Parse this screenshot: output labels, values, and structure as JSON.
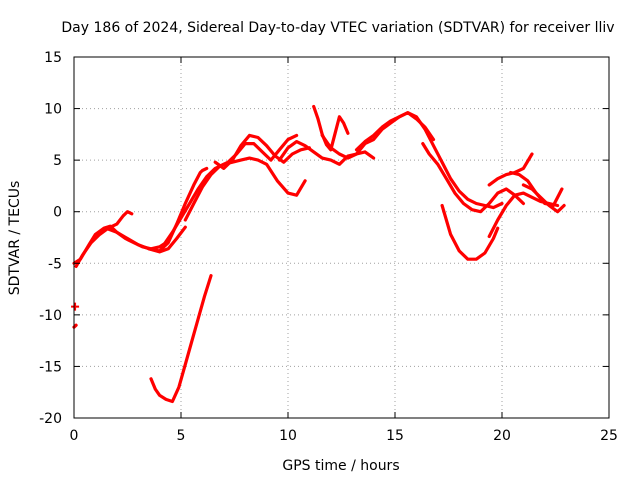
{
  "chart_data": {
    "type": "line",
    "title": "Day 186 of 2024, Sidereal Day-to-day VTEC variation (SDTVAR) for receiver lliv",
    "xlabel": "GPS time / hours",
    "ylabel": "SDTVAR / TECUs",
    "xlim": [
      0,
      25
    ],
    "ylim": [
      -20,
      15
    ],
    "xticks": [
      0,
      5,
      10,
      15,
      20,
      25
    ],
    "yticks": [
      -20,
      -15,
      -10,
      -5,
      0,
      5,
      10,
      15
    ],
    "grid": true,
    "color": "#ff0000",
    "series": [
      {
        "name": "arc-1",
        "x": [
          0.0,
          0.3,
          0.7,
          1.0,
          1.4,
          1.7,
          2.0,
          2.4,
          2.8,
          3.2,
          3.6,
          4.0,
          4.3
        ],
        "y": [
          -5.0,
          -4.6,
          -3.2,
          -2.2,
          -1.6,
          -1.4,
          -2.0,
          -2.6,
          -3.0,
          -3.4,
          -3.6,
          -3.4,
          -3.0
        ]
      },
      {
        "name": "arc-2",
        "x": [
          0.1,
          0.4,
          0.8,
          1.2,
          1.6,
          2.0,
          2.3,
          2.5,
          2.7
        ],
        "y": [
          -5.3,
          -4.2,
          -3.0,
          -2.2,
          -1.6,
          -1.2,
          -0.4,
          0.0,
          -0.2
        ]
      },
      {
        "name": "arc-3",
        "x": [
          1.5,
          2.0,
          2.5,
          3.0,
          3.5,
          4.0,
          4.4,
          4.8,
          5.2
        ],
        "y": [
          -1.6,
          -2.0,
          -2.6,
          -3.2,
          -3.6,
          -3.9,
          -3.6,
          -2.6,
          -1.5
        ]
      },
      {
        "name": "arc-4",
        "x": [
          3.5,
          4.0,
          4.4,
          4.8,
          5.2,
          5.6,
          5.9,
          6.0,
          6.2
        ],
        "y": [
          -3.6,
          -3.8,
          -3.0,
          -1.2,
          0.8,
          2.6,
          3.8,
          4.0,
          4.2
        ]
      },
      {
        "name": "arc-5",
        "x": [
          4.2,
          4.6,
          5.0,
          5.4,
          5.8,
          6.2,
          6.6,
          7.0,
          7.4,
          7.8,
          8.2,
          8.6,
          9.0,
          9.5,
          10.0,
          10.4,
          10.8
        ],
        "y": [
          -3.2,
          -2.0,
          -0.6,
          0.8,
          2.2,
          3.4,
          4.2,
          4.6,
          4.8,
          5.0,
          5.2,
          5.0,
          4.6,
          3.0,
          1.8,
          1.6,
          3.0
        ]
      },
      {
        "name": "arc-6",
        "x": [
          5.2,
          5.6,
          6.0,
          6.4,
          6.8,
          7.2,
          7.6,
          8.0,
          8.4,
          8.8,
          9.2,
          9.6,
          10.0,
          10.4
        ],
        "y": [
          -0.8,
          0.8,
          2.4,
          3.6,
          4.4,
          4.8,
          5.6,
          6.6,
          6.6,
          5.8,
          5.0,
          6.0,
          7.0,
          7.4
        ]
      },
      {
        "name": "arc-7",
        "x": [
          6.6,
          7.0,
          7.4,
          7.8,
          8.2,
          8.6,
          9.0,
          9.4,
          9.8,
          10.2,
          10.6,
          11.0
        ],
        "y": [
          4.8,
          4.2,
          5.0,
          6.4,
          7.4,
          7.2,
          6.4,
          5.4,
          4.8,
          5.6,
          6.0,
          6.2
        ]
      },
      {
        "name": "arc-8",
        "x": [
          9.6,
          10.0,
          10.4,
          10.8,
          11.2,
          11.6,
          12.0,
          12.4,
          12.8,
          13.2,
          13.6,
          14.0
        ],
        "y": [
          5.0,
          6.2,
          6.8,
          6.4,
          5.8,
          5.2,
          5.0,
          4.6,
          5.4,
          5.6,
          5.8,
          5.2
        ]
      },
      {
        "name": "arc-9",
        "x": [
          11.2,
          11.4,
          11.6,
          11.8,
          12.0,
          12.2,
          12.4,
          12.6,
          12.8
        ],
        "y": [
          10.2,
          9.0,
          7.5,
          6.5,
          6.0,
          7.6,
          9.2,
          8.6,
          7.6
        ]
      },
      {
        "name": "arc-10",
        "x": [
          11.6,
          12.0,
          12.4,
          12.8,
          13.2,
          13.6,
          14.0,
          14.4,
          14.8,
          15.2,
          15.6,
          16.0,
          16.4,
          16.8
        ],
        "y": [
          7.4,
          6.2,
          5.6,
          5.2,
          5.6,
          6.6,
          7.0,
          8.0,
          8.6,
          9.2,
          9.6,
          9.0,
          8.2,
          7.0
        ]
      },
      {
        "name": "arc-11",
        "x": [
          13.2,
          13.6,
          14.0,
          14.4,
          14.8,
          15.2,
          15.6,
          16.0,
          16.4,
          16.8,
          17.2,
          17.6,
          18.0,
          18.4,
          18.8,
          19.2,
          19.6,
          20.0
        ],
        "y": [
          6.0,
          6.8,
          7.4,
          8.2,
          8.8,
          9.2,
          9.6,
          9.2,
          8.0,
          6.4,
          4.8,
          3.2,
          2.0,
          1.2,
          0.8,
          0.6,
          0.4,
          0.8
        ]
      },
      {
        "name": "arc-12",
        "x": [
          16.3,
          16.6,
          17.0,
          17.4,
          17.8,
          18.2,
          18.6,
          19.0,
          19.4,
          19.8,
          20.2,
          20.6,
          21.0
        ],
        "y": [
          6.6,
          5.6,
          4.6,
          3.2,
          1.8,
          0.8,
          0.2,
          0.0,
          0.8,
          1.8,
          2.2,
          1.6,
          0.8
        ]
      },
      {
        "name": "arc-13",
        "x": [
          17.2,
          17.6,
          18.0,
          18.4,
          18.8,
          19.2,
          19.6,
          19.8
        ],
        "y": [
          0.6,
          -2.2,
          -3.8,
          -4.6,
          -4.6,
          -4.0,
          -2.6,
          -1.6
        ]
      },
      {
        "name": "arc-14",
        "x": [
          19.4,
          19.8,
          20.2,
          20.6,
          21.0,
          21.4,
          21.8,
          22.2,
          22.6
        ],
        "y": [
          -2.4,
          -0.8,
          0.6,
          1.6,
          1.8,
          1.4,
          1.0,
          0.8,
          0.6
        ]
      },
      {
        "name": "arc-15",
        "x": [
          19.4,
          19.8,
          20.2,
          20.6,
          21.0,
          21.4
        ],
        "y": [
          2.6,
          3.2,
          3.6,
          3.8,
          4.2,
          5.6
        ]
      },
      {
        "name": "arc-16",
        "x": [
          20.4,
          20.8,
          21.2,
          21.6,
          22.0,
          22.4,
          22.8
        ],
        "y": [
          3.8,
          3.6,
          3.0,
          1.8,
          0.8,
          0.6,
          2.2
        ]
      },
      {
        "name": "arc-17",
        "x": [
          21.0,
          21.4,
          21.8,
          22.2,
          22.6,
          22.9
        ],
        "y": [
          2.6,
          2.2,
          1.4,
          0.6,
          0.0,
          0.6
        ]
      },
      {
        "name": "arc-18",
        "x": [
          0.0,
          0.1
        ],
        "y": [
          -11.2,
          -11.0
        ]
      },
      {
        "name": "arc-19",
        "x": [
          3.6,
          3.8,
          4.0,
          4.3,
          4.6,
          4.9,
          5.2,
          5.5,
          5.8,
          6.1,
          6.4
        ],
        "y": [
          -16.2,
          -17.2,
          -17.8,
          -18.2,
          -18.4,
          -17.0,
          -14.8,
          -12.6,
          -10.4,
          -8.2,
          -6.2
        ]
      }
    ],
    "markers": [
      {
        "name": "marker-1",
        "x": 0.05,
        "y": -9.2
      }
    ]
  }
}
